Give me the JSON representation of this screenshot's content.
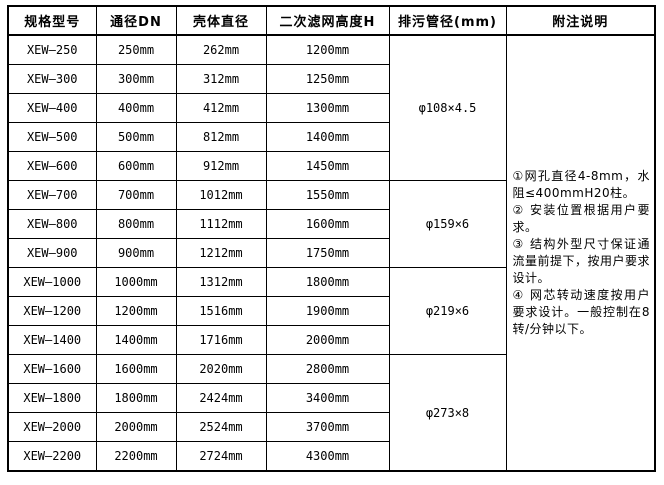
{
  "table": {
    "headers": [
      "规格型号",
      "通径DN",
      "壳体直径",
      "二次滤网高度H",
      "排污管径(mm)",
      "附注说明"
    ],
    "rows": [
      [
        "XEW—250",
        "250mm",
        "262mm",
        "1200mm"
      ],
      [
        "XEW—300",
        "300mm",
        "312mm",
        "1250mm"
      ],
      [
        "XEW—400",
        "400mm",
        "412mm",
        "1300mm"
      ],
      [
        "XEW—500",
        "500mm",
        "812mm",
        "1400mm"
      ],
      [
        "XEW—600",
        "600mm",
        "912mm",
        "1450mm"
      ],
      [
        "XEW—700",
        "700mm",
        "1012mm",
        "1550mm"
      ],
      [
        "XEW—800",
        "800mm",
        "1112mm",
        "1600mm"
      ],
      [
        "XEW—900",
        "900mm",
        "1212mm",
        "1750mm"
      ],
      [
        "XEW—1000",
        "1000mm",
        "1312mm",
        "1800mm"
      ],
      [
        "XEW—1200",
        "1200mm",
        "1516mm",
        "1900mm"
      ],
      [
        "XEW—1400",
        "1400mm",
        "1716mm",
        "2000mm"
      ],
      [
        "XEW—1600",
        "1600mm",
        "2020mm",
        "2800mm"
      ],
      [
        "XEW—1800",
        "1800mm",
        "2424mm",
        "3400mm"
      ],
      [
        "XEW—2000",
        "2000mm",
        "2524mm",
        "3700mm"
      ],
      [
        "XEW—2200",
        "2200mm",
        "2724mm",
        "4300mm"
      ]
    ],
    "drain_groups": [
      {
        "value": "φ108×4.5",
        "span": 5
      },
      {
        "value": "φ159×6",
        "span": 3
      },
      {
        "value": "φ219×6",
        "span": 3
      },
      {
        "value": "φ273×8",
        "span": 4
      }
    ],
    "notes": [
      "①网孔直径4-8mm，水阻≤400mmH20柱。",
      "② 安装位置根据用户要求。",
      "③ 结构外型尺寸保证通流量前提下，按用户要求设计。",
      "④ 网芯转动速度按用户要求设计。一般控制在8转/分钟以下。"
    ],
    "colors": {
      "border": "#000000",
      "text": "#000000",
      "background": "#ffffff"
    }
  }
}
